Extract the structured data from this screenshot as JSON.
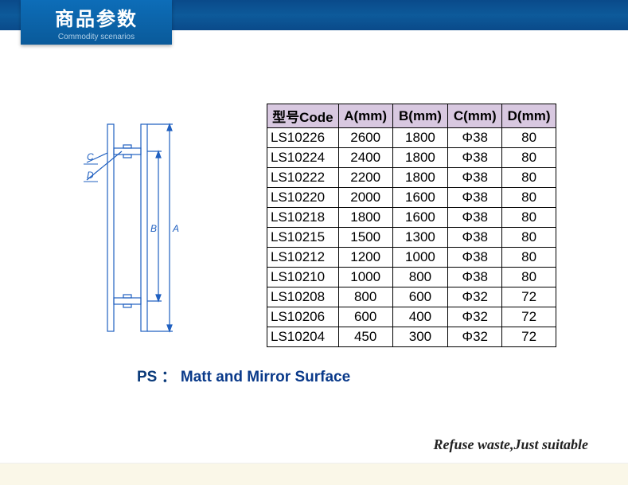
{
  "header": {
    "title_cn": "商品参数",
    "title_en": "Commodity scenarios"
  },
  "diagram": {
    "stroke": "#2060c0",
    "labels": {
      "A": "A",
      "B": "B",
      "C": "C",
      "D": "D"
    }
  },
  "table": {
    "header_bg": "#d8c8e0",
    "border_color": "#000000",
    "columns": [
      "型号Code",
      "A(mm)",
      "B(mm)",
      "C(mm)",
      "D(mm)"
    ],
    "rows": [
      [
        "LS10226",
        "2600",
        "1800",
        "Φ38",
        "80"
      ],
      [
        "LS10224",
        "2400",
        "1800",
        "Φ38",
        "80"
      ],
      [
        "LS10222",
        "2200",
        "1800",
        "Φ38",
        "80"
      ],
      [
        "LS10220",
        "2000",
        "1600",
        "Φ38",
        "80"
      ],
      [
        "LS10218",
        "1800",
        "1600",
        "Φ38",
        "80"
      ],
      [
        "LS10215",
        "1500",
        "1300",
        "Φ38",
        "80"
      ],
      [
        "LS10212",
        "1200",
        "1000",
        "Φ38",
        "80"
      ],
      [
        "LS10210",
        "1000",
        "800",
        "Φ38",
        "80"
      ],
      [
        "LS10208",
        "800",
        "600",
        "Φ32",
        "72"
      ],
      [
        "LS10206",
        "600",
        "400",
        "Φ32",
        "72"
      ],
      [
        "LS10204",
        "450",
        "300",
        "Φ32",
        "72"
      ]
    ]
  },
  "ps": {
    "label": "PS ：",
    "text": "Matt and Mirror Surface"
  },
  "tagline": "Refuse waste,Just suitable"
}
